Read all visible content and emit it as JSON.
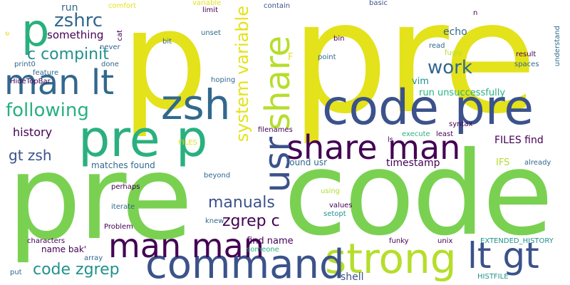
{
  "colors": {
    "background": "#ffffff",
    "palette": [
      "#e4e21a",
      "#7ad151",
      "#2ab07f",
      "#1f9e89",
      "#21918c",
      "#31688e",
      "#3b528b",
      "#440154",
      "#b5de2b"
    ]
  },
  "words": {
    "pre_big": "pre",
    "p_big": "p",
    "code_big": "code",
    "pre_low": "pre",
    "code_pre": "code pre",
    "pre_p": "pre p",
    "zsh": "zsh",
    "man_lt": "man lt",
    "share_man": "share man",
    "strong": "strong",
    "command": "command",
    "man_man": "man man",
    "lt_gt": "lt gt",
    "p_small": "p",
    "usr": "usr",
    "share_v": "share",
    "system_variable": "system variable",
    "zshrc": "zshrc",
    "c_compinit": "c compinit",
    "following": "following",
    "work": "work",
    "manuals": "manuals",
    "zgrep_c": "zgrep c",
    "code_zgrep": "code zgrep",
    "gt_zsh": "gt zsh",
    "history": "history",
    "something": "something",
    "run": "run",
    "comfort": "comfort",
    "variable": "variable",
    "limit": "limit",
    "contain": "contain",
    "basic": "basic",
    "echo": "echo",
    "vim": "vim",
    "run_unsuccessfully": "run unsuccessfully",
    "timestamp": "timestamp",
    "matches_found": "matches found",
    "found_usr": "found usr",
    "files_find": "FILES find",
    "ifs": "IFS",
    "find_name": "find name",
    "name_bak": "name bak'",
    "shell": "shell",
    "extended_history": "EXTENDED_HISTORY",
    "histfile": "HISTFILE",
    "hidetopbar": "HideTopBar",
    "feature": "feature",
    "print0": "print0",
    "done": "done",
    "never": "never",
    "cat": "cat",
    "e": "e",
    "bit": "bit",
    "unset": "unset",
    "bin": "bin",
    "point": "point",
    "read": "read",
    "fugly": "fugly",
    "result": "result",
    "spaces": "spaces",
    "understand": "understand",
    "n": "n",
    "f": "F",
    "hoping": "hoping",
    "filenames": "filenames",
    "execute": "execute",
    "least": "least",
    "ls": "ls",
    "syntax": "syntax",
    "files": "FILES",
    "already": "already",
    "beyond": "beyond",
    "perhaps": "perhaps",
    "iterate": "iterate",
    "knew": "knew",
    "problem": "Problem",
    "characters": "characters",
    "array": "array",
    "put": "put",
    "using": "using",
    "values": "values",
    "setopt": "setopt",
    "someone": "someone",
    "funky": "funky",
    "unix": "unix"
  }
}
